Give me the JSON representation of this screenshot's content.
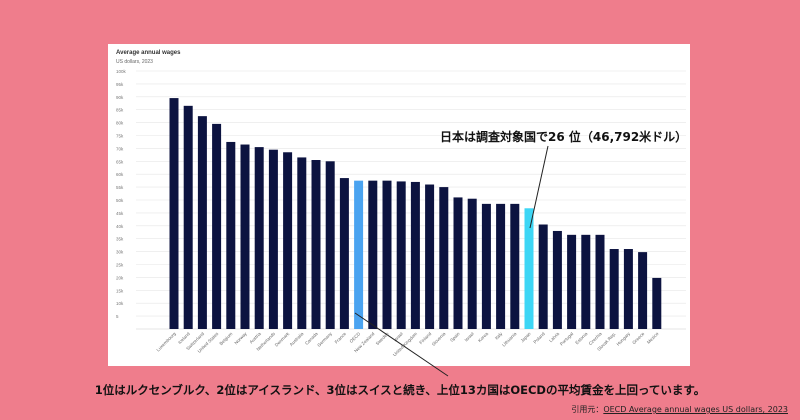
{
  "chart_data": {
    "type": "bar",
    "title": "Average annual wages",
    "subtitle": "US dollars, 2023",
    "ylim": [
      0,
      100000
    ],
    "y_ticks": [
      "5",
      "10k",
      "15k",
      "20k",
      "25k",
      "30k",
      "35k",
      "40k",
      "45k",
      "50k",
      "55k",
      "60k",
      "65k",
      "70k",
      "75k",
      "80k",
      "85k",
      "90k",
      "95k",
      "100k"
    ],
    "categories": [
      "Luxembourg",
      "Iceland",
      "Switzerland",
      "United States",
      "Belgium",
      "Norway",
      "Austria",
      "Netherlands",
      "Denmark",
      "Australia",
      "Canada",
      "Germany",
      "France",
      "OECD",
      "New Zealand",
      "Sweden",
      "Israel",
      "United Kingdom",
      "Finland",
      "Slovenia",
      "Spain",
      "Israel",
      "Korea",
      "Italy",
      "Lithuania",
      "Japan",
      "Poland",
      "Latvia",
      "Portugal",
      "Estonia",
      "Czechia",
      "Slovak Rep.",
      "Hungary",
      "Greece",
      "Mexico"
    ],
    "values": [
      89500,
      86500,
      82500,
      79500,
      72500,
      71500,
      70500,
      69500,
      68500,
      66500,
      65500,
      65000,
      58500,
      57500,
      57500,
      57500,
      57200,
      57000,
      56000,
      55000,
      51000,
      50500,
      48500,
      48500,
      48500,
      46792,
      40500,
      38000,
      36500,
      36500,
      36500,
      31000,
      31000,
      29800,
      19800
    ],
    "highlight": {
      "OECD": "#4aa3f0",
      "Japan": "#3dd6f5"
    },
    "default_color": "#0c1340",
    "grid": true
  },
  "annotation": "日本は調査対象国で26 位（46,792米ドル）",
  "caption": "1位はルクセンブルク、2位はアイスランド、3位はスイスと続き、上位13カ国はOECDの平均賃金を上回っています。",
  "source": {
    "prefix": "引用元：",
    "link_text": "OECD Average annual wages US dollars, 2023"
  }
}
